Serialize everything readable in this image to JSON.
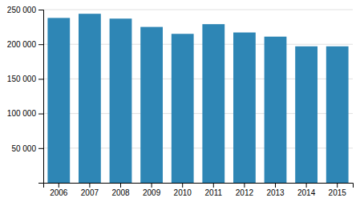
{
  "chart_data": {
    "type": "bar",
    "categories": [
      "2006",
      "2007",
      "2008",
      "2009",
      "2010",
      "2011",
      "2012",
      "2013",
      "2014",
      "2015"
    ],
    "values": [
      238000,
      244000,
      237000,
      225000,
      215000,
      229000,
      217000,
      211000,
      197000,
      197000
    ],
    "color": "#2e86b5",
    "ylim": [
      0,
      250000
    ],
    "yticks": [
      {
        "value": 50000,
        "label": "50 000"
      },
      {
        "value": 100000,
        "label": "100 000"
      },
      {
        "value": 150000,
        "label": "150 000"
      },
      {
        "value": 200000,
        "label": "200 000"
      },
      {
        "value": 250000,
        "label": "250 000"
      }
    ],
    "grid": true
  }
}
